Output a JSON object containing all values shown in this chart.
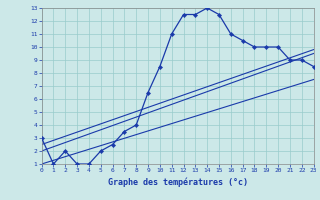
{
  "xlabel": "Graphe des températures (°c)",
  "bg_color": "#cce8e8",
  "grid_color": "#99cccc",
  "line_color": "#1a3aaa",
  "xmin": 0,
  "xmax": 23,
  "ymin": 1,
  "ymax": 13,
  "temp_x": [
    0,
    1,
    2,
    3,
    4,
    5,
    6,
    7,
    8,
    9,
    10,
    11,
    12,
    13,
    14,
    15,
    16,
    17,
    18,
    19,
    20,
    21,
    22,
    23
  ],
  "temp_y": [
    3.0,
    1.0,
    2.0,
    1.0,
    1.0,
    2.0,
    2.5,
    3.5,
    4.0,
    6.5,
    8.5,
    11.0,
    12.5,
    12.5,
    13.0,
    12.5,
    11.0,
    10.5,
    10.0,
    10.0,
    10.0,
    9.0,
    9.0,
    8.5
  ],
  "line1_x": [
    0,
    23
  ],
  "line1_y": [
    2.0,
    9.5
  ],
  "line2_x": [
    0,
    23
  ],
  "line2_y": [
    2.5,
    9.8
  ],
  "line3_x": [
    0,
    23
  ],
  "line3_y": [
    1.0,
    7.5
  ],
  "xticks": [
    0,
    1,
    2,
    3,
    4,
    5,
    6,
    7,
    8,
    9,
    10,
    11,
    12,
    13,
    14,
    15,
    16,
    17,
    18,
    19,
    20,
    21,
    22,
    23
  ],
  "yticks": [
    1,
    2,
    3,
    4,
    5,
    6,
    7,
    8,
    9,
    10,
    11,
    12,
    13
  ]
}
